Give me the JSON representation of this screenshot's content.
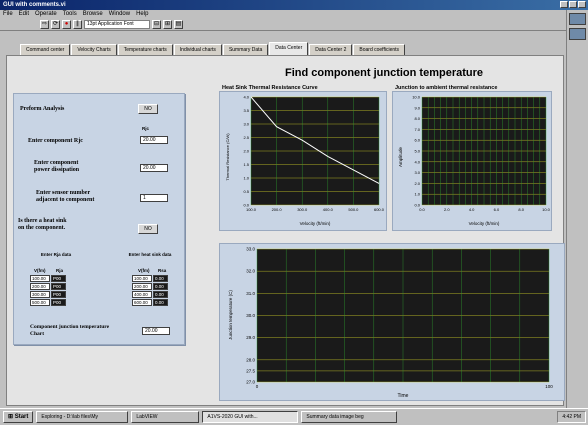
{
  "window": {
    "title": "GUI with comments.vi"
  },
  "menu": [
    "File",
    "Edit",
    "Operate",
    "Tools",
    "Browse",
    "Window",
    "Help"
  ],
  "toolbar": {
    "font": "13pt Application Font"
  },
  "tabs": [
    {
      "label": "Command center",
      "active": false
    },
    {
      "label": "Velocity Charts",
      "active": false
    },
    {
      "label": "Temperature charts",
      "active": false
    },
    {
      "label": "Individual charts",
      "active": false
    },
    {
      "label": "Summary Data",
      "active": false
    },
    {
      "label": "Data Center",
      "active": true
    },
    {
      "label": "Data Center 2",
      "active": false
    },
    {
      "label": "Board coefficients",
      "active": false
    }
  ],
  "main": {
    "title": "Find component junction temperature"
  },
  "left": {
    "preform": "Preform Analysis",
    "preform_btn": "NO",
    "rjc_unit": "Rjc",
    "enter_rjc": "Enter component Rjc",
    "rjc_value": "20.00",
    "enter_power_1": "Enter component",
    "enter_power_2": "power dissipation",
    "power_value": "20.00",
    "enter_sensor_1": "Enter sensor number",
    "enter_sensor_2": "adjacent to component",
    "sensor_value": "1",
    "heatsink_q_1": "Is there a heat sink",
    "heatsink_q_2": "on the component.",
    "heatsink_btn": "NO",
    "rja_hdr": "Enter Rja data",
    "hs_hdr": "Enter heat sink data",
    "col_v": "V(fm)",
    "col_rja": "Rja",
    "col_v2": "V(fm)",
    "col_rsa": "Rsa",
    "rja_rows": [
      {
        "v": "100.00",
        "r": "P00"
      },
      {
        "v": "200.00",
        "r": "P00"
      },
      {
        "v": "300.00",
        "r": "P00"
      },
      {
        "v": "500.00",
        "r": "P00"
      }
    ],
    "hs_rows": [
      {
        "v": "100.00",
        "r": "0.00"
      },
      {
        "v": "200.00",
        "r": "0.00"
      },
      {
        "v": "400.00",
        "r": "0.00"
      },
      {
        "v": "600.00",
        "r": "0.00"
      }
    ],
    "result_1": "Component junction temperature",
    "result_2": "Chart",
    "result_value": "20.00"
  },
  "charts": {
    "hs_title": "Heat Sink Thermal Resistance Curve",
    "hs_ylabel": "Thermal Resistance (C/W)",
    "hs_xlabel": "Velocity (ft/min)",
    "ja_title": "Junction to ambient thermal resistance",
    "ja_ylabel": "Amplitude",
    "ja_xlabel": "Velocity (ft/min)",
    "temp_ylabel": "Junction temperature (C)",
    "temp_xlabel": "Time"
  },
  "chart_data": [
    {
      "type": "line",
      "title": "Heat Sink Thermal Resistance Curve",
      "xlabel": "Velocity (ft/min)",
      "ylabel": "Thermal Resistance (C/W)",
      "x": [
        100,
        200,
        300,
        400,
        500,
        600
      ],
      "y": [
        4.0,
        2.9,
        2.4,
        1.8,
        1.3,
        0.8
      ],
      "xlim": [
        100,
        600
      ],
      "ylim": [
        0,
        4
      ],
      "xticks": [
        "100.0",
        "200.0",
        "300.0",
        "400.0",
        "500.0",
        "600.0"
      ],
      "yticks": [
        "0.0",
        "0.5",
        "1.0",
        "1.5",
        "2.0",
        "2.5",
        "3.0",
        "3.5",
        "4.0"
      ],
      "grid": true
    },
    {
      "type": "line",
      "title": "Junction to ambient thermal resistance",
      "xlabel": "Velocity (ft/min)",
      "ylabel": "Amplitude",
      "x": [],
      "y": [],
      "xlim": [
        0,
        10
      ],
      "ylim": [
        0,
        10
      ],
      "xticks": [
        "0.0",
        "2.0",
        "4.0",
        "6.0",
        "8.0",
        "10.0"
      ],
      "yticks": [
        "0.0",
        "1.0",
        "2.0",
        "3.0",
        "4.0",
        "5.0",
        "6.0",
        "7.0",
        "8.0",
        "9.0",
        "10.0"
      ],
      "grid": true
    },
    {
      "type": "line",
      "title": "",
      "xlabel": "Time",
      "ylabel": "Junction temperature (C)",
      "x": [],
      "y": [],
      "xlim": [
        0,
        100
      ],
      "ylim": [
        27.0,
        33.0
      ],
      "xticks": [
        "0",
        "100"
      ],
      "yticks": [
        "27.0",
        "27.5",
        "28.0",
        "29.0",
        "30.0",
        "31.0",
        "32.0",
        "33.0"
      ],
      "grid": true
    }
  ],
  "taskbar": {
    "start": "Start",
    "items": [
      {
        "label": "Exploring - D:\\lab files\\My",
        "active": false
      },
      {
        "label": "LabVIEW",
        "active": false
      },
      {
        "label": "A1VS-2020 GUI with...",
        "active": true
      },
      {
        "label": "Summary data image beg",
        "active": false
      }
    ],
    "clock": "4:42 PM"
  }
}
